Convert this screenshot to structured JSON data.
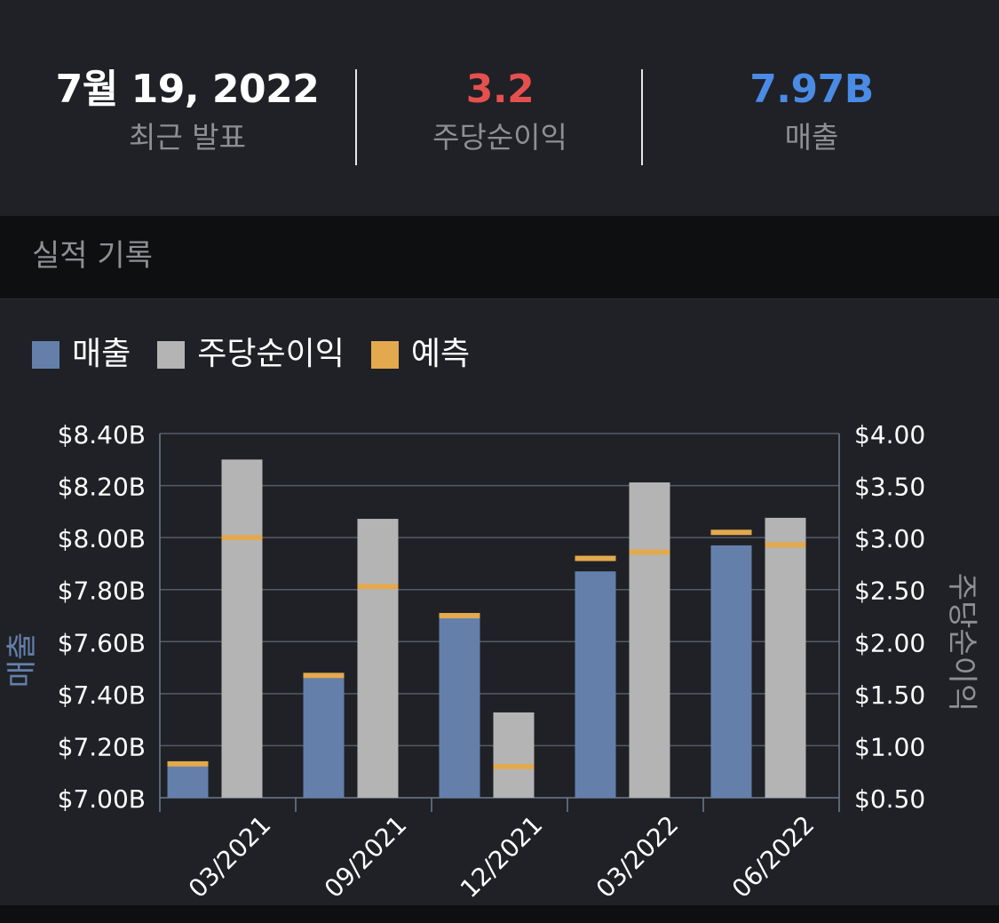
{
  "stats": {
    "date": {
      "value": "7월 19, 2022",
      "label": "최근 발표"
    },
    "eps": {
      "value": "3.2",
      "label": "주당순이익",
      "color": "#e5504f"
    },
    "revenue": {
      "value": "7.97B",
      "label": "매출",
      "color": "#4a8be6"
    }
  },
  "section": {
    "title": "실적 기록"
  },
  "legend": [
    {
      "label": "매출",
      "color": "#6480aa"
    },
    {
      "label": "주당순이익",
      "color": "#b4b4b4"
    },
    {
      "label": "예측",
      "color": "#e3a94f"
    }
  ],
  "chart_data": {
    "type": "bar",
    "categories": [
      "03/2021",
      "09/2021",
      "12/2021",
      "03/2022",
      "06/2022"
    ],
    "series": [
      {
        "name": "매출",
        "axis": "left",
        "color": "#6480aa",
        "values": [
          7.12,
          7.46,
          7.69,
          7.87,
          7.97
        ],
        "estimates": [
          7.13,
          7.47,
          7.7,
          7.92,
          8.02
        ]
      },
      {
        "name": "주당순이익",
        "axis": "right",
        "color": "#b4b4b4",
        "values": [
          3.75,
          3.18,
          1.32,
          3.53,
          3.19
        ],
        "estimates": [
          3.0,
          2.53,
          0.8,
          2.86,
          2.93
        ]
      }
    ],
    "estimate_color": "#e3a94f",
    "left_axis": {
      "label": "매출",
      "ylim": [
        7.0,
        8.4
      ],
      "ticks": [
        7.0,
        7.2,
        7.4,
        7.6,
        7.8,
        8.0,
        8.2,
        8.4
      ],
      "tick_labels": [
        "$7.00B",
        "$7.20B",
        "$7.40B",
        "$7.60B",
        "$7.80B",
        "$8.00B",
        "$8.20B",
        "$8.40B"
      ]
    },
    "right_axis": {
      "label": "주당순이익",
      "ylim": [
        0.5,
        4.0
      ],
      "ticks": [
        0.5,
        1.0,
        1.5,
        2.0,
        2.5,
        3.0,
        3.5,
        4.0
      ],
      "tick_labels": [
        "$0.50",
        "$1.00",
        "$1.50",
        "$2.00",
        "$2.50",
        "$3.00",
        "$3.50",
        "$4.00"
      ]
    },
    "grid": true
  }
}
